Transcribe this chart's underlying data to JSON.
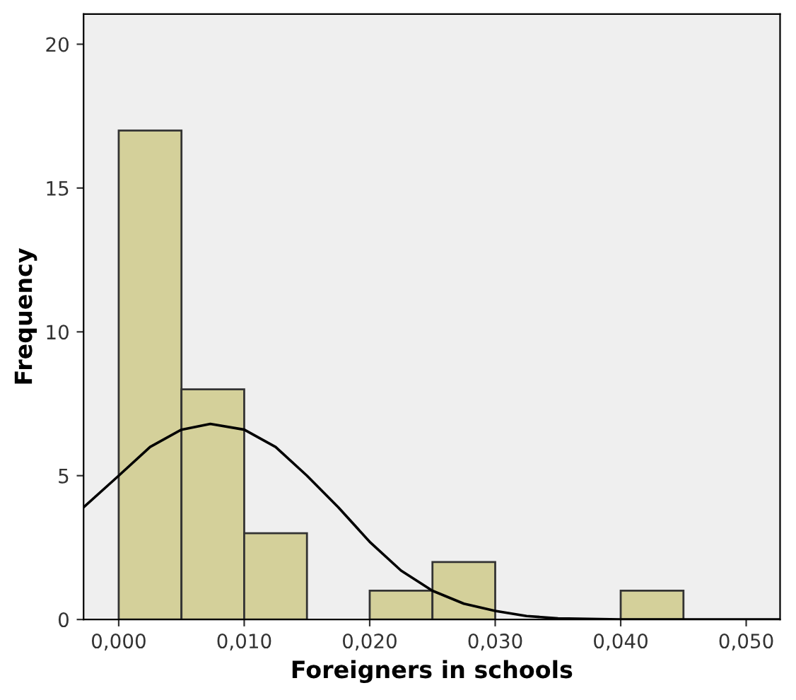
{
  "chart_data": {
    "type": "histogram",
    "xlabel": "Foreigners in schools",
    "ylabel": "Frequency",
    "bins": [
      0,
      0.005,
      0.01,
      0.015,
      0.02,
      0.025,
      0.03,
      0.035,
      0.04,
      0.045
    ],
    "values": [
      17,
      8,
      3,
      0,
      1,
      2,
      0,
      0,
      1
    ],
    "color": "#d4d09a",
    "series": [
      {
        "type": "line",
        "color": "#000000",
        "x": [
          -0.0028,
          0,
          0.0025,
          0.005,
          0.0073,
          0.01,
          0.0125,
          0.015,
          0.0175,
          0.02,
          0.0225,
          0.025,
          0.0275,
          0.03,
          0.0325,
          0.035,
          0.04,
          0.045,
          0.0527
        ],
        "values": [
          3.9,
          5.0,
          6.0,
          6.6,
          6.8,
          6.6,
          6.0,
          5.0,
          3.9,
          2.7,
          1.7,
          1.0,
          0.55,
          0.3,
          0.12,
          0.04,
          0,
          0,
          0
        ]
      }
    ],
    "xlim": [
      -0.0028,
      0.0527
    ],
    "ylim": [
      0,
      21.05
    ],
    "xticks": [
      {
        "value": 0,
        "label": "0,000"
      },
      {
        "value": 0.01,
        "label": "0,010"
      },
      {
        "value": 0.02,
        "label": "0,020"
      },
      {
        "value": 0.03,
        "label": "0,030"
      },
      {
        "value": 0.04,
        "label": "0,040"
      },
      {
        "value": 0.05,
        "label": "0,050"
      }
    ],
    "yticks": [
      0,
      5,
      10,
      15,
      20
    ],
    "grid": false,
    "legend": false,
    "marker": "none",
    "line_style": "solid"
  }
}
